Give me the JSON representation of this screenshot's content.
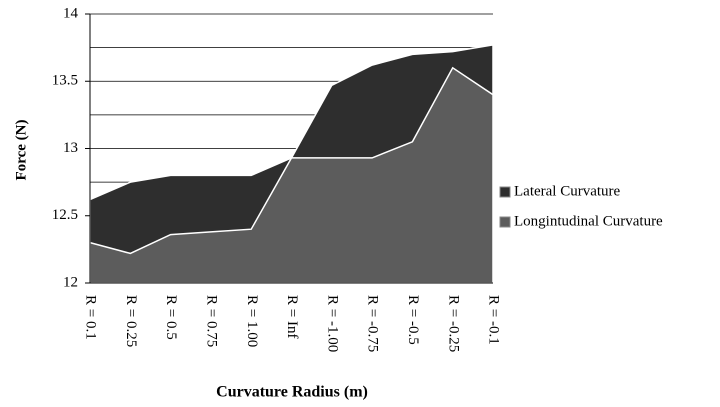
{
  "chart_data": {
    "type": "area",
    "x_label": "Curvature Radius (m)",
    "y_label": "Force (N)",
    "categories": [
      "R = 0.1",
      "R = 0.25",
      "R = 0.5",
      "R = 0.75",
      "R = 1.00",
      "R = Inf",
      "R = -1.00",
      "R = -0.75",
      "R = -0.5",
      "R = -0.25",
      "R = -0.1"
    ],
    "series": [
      {
        "name": "Lateral Curvature",
        "color": "#2e2e2e",
        "values": [
          12.62,
          12.75,
          12.8,
          12.8,
          12.8,
          12.93,
          13.47,
          13.62,
          13.7,
          13.72,
          13.77
        ]
      },
      {
        "name": "Longintudinal Curvature",
        "color": "#5c5c5c",
        "values": [
          12.3,
          12.22,
          12.36,
          12.38,
          12.4,
          12.93,
          12.93,
          12.93,
          13.05,
          13.6,
          13.4
        ]
      }
    ],
    "ylim": [
      12,
      14
    ],
    "yticks": [
      12,
      12.5,
      13,
      13.5,
      14
    ],
    "minor_yticks": [
      12.25,
      12.75,
      13.25,
      13.75
    ],
    "grid": true,
    "legend": "right"
  }
}
